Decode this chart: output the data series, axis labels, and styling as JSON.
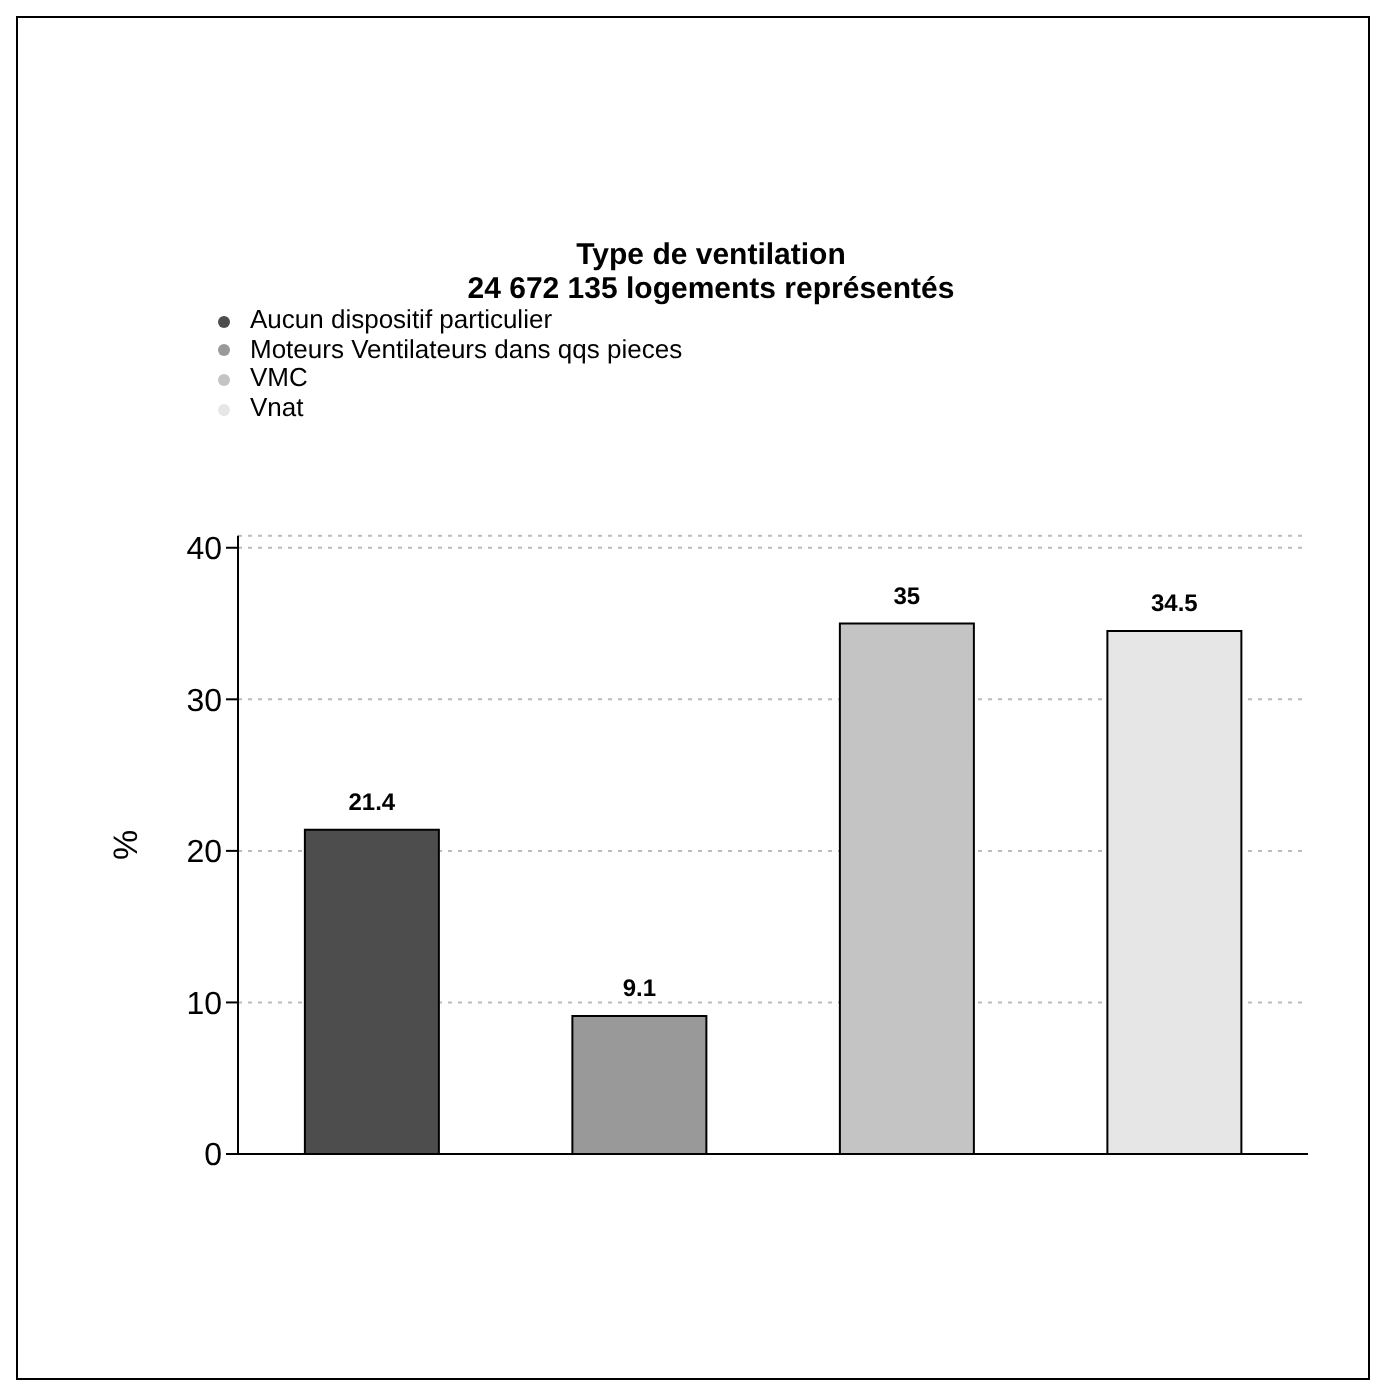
{
  "chart_data": {
    "type": "bar",
    "title": "Type de ventilation",
    "subtitle": "24 672 135 logements représentés",
    "ylabel": "%",
    "categories": [
      null,
      null,
      null,
      null
    ],
    "series": [
      {
        "name": "Aucun dispositif particulier",
        "color": "#4d4d4d",
        "values": [
          21.4,
          null,
          null,
          null
        ]
      },
      {
        "name": "Moteurs Ventilateurs dans qqs pieces",
        "color": "#999999",
        "values": [
          null,
          9.1,
          null,
          null
        ]
      },
      {
        "name": "VMC",
        "color": "#c4c4c4",
        "values": [
          null,
          null,
          35,
          null
        ]
      },
      {
        "name": "Vnat",
        "color": "#e6e6e6",
        "values": [
          null,
          null,
          null,
          34.5
        ]
      }
    ],
    "stacked": true,
    "ylim": [
      0,
      40.8
    ],
    "yticks": [
      0,
      10,
      20,
      30,
      40
    ],
    "grid": "y",
    "legend": "top left",
    "tick_labels": "y",
    "data_labels": true
  }
}
